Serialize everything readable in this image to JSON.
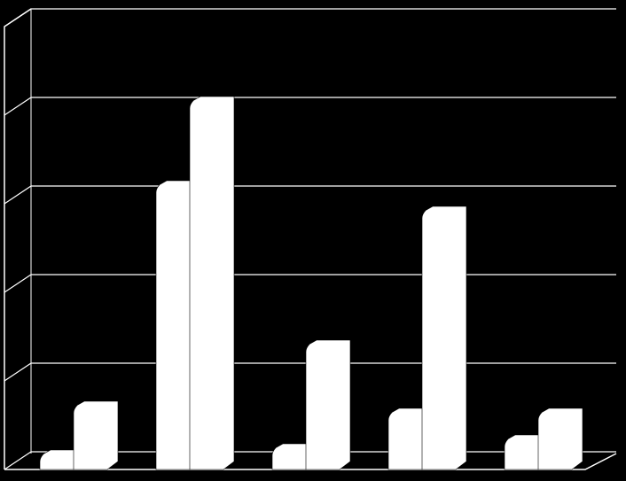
{
  "chart_data": {
    "type": "bar3d",
    "categories": [
      null,
      null,
      null,
      null,
      null
    ],
    "series": [
      {
        "color": "#ffffff",
        "values": [
          0.13,
          3.17,
          0.2,
          0.6,
          0.3
        ]
      },
      {
        "color": "#ffffff",
        "values": [
          0.68,
          4.12,
          1.37,
          2.88,
          0.6
        ]
      }
    ],
    "ylim": [
      0,
      5
    ],
    "yticks": [
      0,
      1,
      2,
      3,
      4,
      5
    ],
    "grid": true
  }
}
